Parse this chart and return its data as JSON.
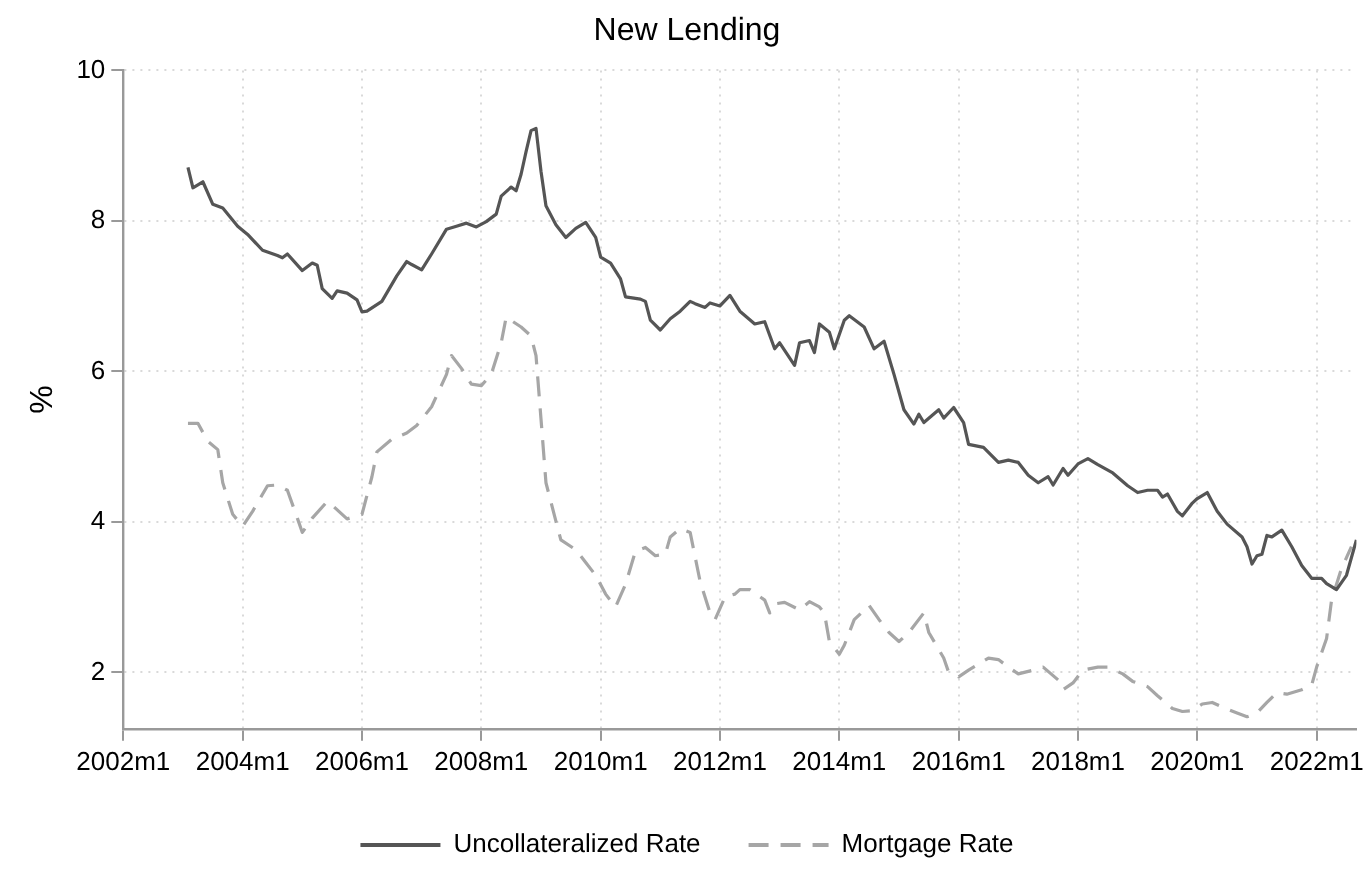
{
  "chart_data": {
    "type": "line",
    "title": "New Lending",
    "ylabel": "%",
    "xlim": [
      "2002-01",
      "2022-09"
    ],
    "ylim": [
      1.25,
      10
    ],
    "xticks": [
      {
        "value": "2002-01",
        "label": "2002m1"
      },
      {
        "value": "2004-01",
        "label": "2004m1"
      },
      {
        "value": "2006-01",
        "label": "2006m1"
      },
      {
        "value": "2008-01",
        "label": "2008m1"
      },
      {
        "value": "2010-01",
        "label": "2010m1"
      },
      {
        "value": "2012-01",
        "label": "2012m1"
      },
      {
        "value": "2014-01",
        "label": "2014m1"
      },
      {
        "value": "2016-01",
        "label": "2016m1"
      },
      {
        "value": "2018-01",
        "label": "2018m1"
      },
      {
        "value": "2020-01",
        "label": "2020m1"
      },
      {
        "value": "2022-01",
        "label": "2022m1"
      }
    ],
    "yticks": [
      2,
      4,
      6,
      8,
      10
    ],
    "grid": true,
    "legend": "bottom",
    "marker": "none",
    "series": [
      {
        "name": "Uncollateralized Rate",
        "color": "#555555",
        "line_style": "solid",
        "x": [
          "2003-02",
          "2003-03",
          "2003-05",
          "2003-07",
          "2003-09",
          "2003-12",
          "2004-02",
          "2004-05",
          "2004-08",
          "2004-09",
          "2004-10",
          "2005-01",
          "2005-03",
          "2005-04",
          "2005-05",
          "2005-07",
          "2005-08",
          "2005-10",
          "2005-12",
          "2006-01",
          "2006-02",
          "2006-05",
          "2006-08",
          "2006-10",
          "2006-11",
          "2007-01",
          "2007-03",
          "2007-06",
          "2007-08",
          "2007-10",
          "2007-12",
          "2008-02",
          "2008-04",
          "2008-05",
          "2008-07",
          "2008-08",
          "2008-09",
          "2008-10",
          "2008-11",
          "2008-12",
          "2009-01",
          "2009-02",
          "2009-04",
          "2009-06",
          "2009-08",
          "2009-10",
          "2009-12",
          "2010-01",
          "2010-03",
          "2010-05",
          "2010-06",
          "2010-09",
          "2010-10",
          "2010-11",
          "2011-01",
          "2011-03",
          "2011-05",
          "2011-07",
          "2011-08",
          "2011-10",
          "2011-11",
          "2012-01",
          "2012-03",
          "2012-05",
          "2012-08",
          "2012-10",
          "2012-12",
          "2013-01",
          "2013-04",
          "2013-05",
          "2013-07",
          "2013-08",
          "2013-09",
          "2013-11",
          "2013-12",
          "2014-02",
          "2014-03",
          "2014-06",
          "2014-08",
          "2014-10",
          "2014-12",
          "2015-02",
          "2015-04",
          "2015-05",
          "2015-06",
          "2015-09",
          "2015-10",
          "2015-12",
          "2016-02",
          "2016-03",
          "2016-06",
          "2016-09",
          "2016-11",
          "2017-01",
          "2017-03",
          "2017-05",
          "2017-07",
          "2017-08",
          "2017-10",
          "2017-11",
          "2018-01",
          "2018-03",
          "2018-05",
          "2018-08",
          "2018-11",
          "2019-01",
          "2019-03",
          "2019-05",
          "2019-06",
          "2019-07",
          "2019-09",
          "2019-10",
          "2019-12",
          "2020-01",
          "2020-03",
          "2020-05",
          "2020-07",
          "2020-10",
          "2020-11",
          "2020-12",
          "2021-01",
          "2021-02",
          "2021-03",
          "2021-04",
          "2021-06",
          "2021-08",
          "2021-10",
          "2021-12",
          "2022-02",
          "2022-03",
          "2022-05",
          "2022-07",
          "2022-09"
        ],
        "values": [
          8.71,
          8.44,
          8.52,
          8.22,
          8.17,
          7.93,
          7.82,
          7.61,
          7.54,
          7.51,
          7.56,
          7.34,
          7.44,
          7.41,
          7.1,
          6.97,
          7.07,
          7.04,
          6.95,
          6.79,
          6.8,
          6.93,
          7.27,
          7.46,
          7.42,
          7.35,
          7.56,
          7.89,
          7.93,
          7.97,
          7.92,
          7.99,
          8.09,
          8.33,
          8.45,
          8.4,
          8.62,
          8.92,
          9.2,
          9.23,
          8.66,
          8.2,
          7.95,
          7.78,
          7.9,
          7.98,
          7.78,
          7.52,
          7.44,
          7.23,
          6.99,
          6.96,
          6.93,
          6.68,
          6.55,
          6.7,
          6.8,
          6.93,
          6.9,
          6.85,
          6.91,
          6.87,
          7.01,
          6.8,
          6.63,
          6.66,
          6.3,
          6.38,
          6.08,
          6.38,
          6.41,
          6.25,
          6.63,
          6.52,
          6.3,
          6.68,
          6.74,
          6.59,
          6.3,
          6.4,
          5.96,
          5.49,
          5.3,
          5.43,
          5.32,
          5.49,
          5.38,
          5.52,
          5.32,
          5.03,
          4.99,
          4.79,
          4.82,
          4.79,
          4.62,
          4.52,
          4.6,
          4.49,
          4.71,
          4.62,
          4.77,
          4.84,
          4.76,
          4.65,
          4.48,
          4.39,
          4.42,
          4.42,
          4.33,
          4.37,
          4.14,
          4.08,
          4.25,
          4.31,
          4.39,
          4.14,
          3.97,
          3.8,
          3.67,
          3.44,
          3.55,
          3.57,
          3.82,
          3.8,
          3.89,
          3.67,
          3.42,
          3.25,
          3.25,
          3.18,
          3.1,
          3.29,
          3.76
        ]
      },
      {
        "name": "Mortgage Rate",
        "color": "#a6a6a6",
        "line_style": "dashed",
        "x": [
          "2003-02",
          "2003-04",
          "2003-06",
          "2003-08",
          "2003-09",
          "2003-11",
          "2004-01",
          "2004-03",
          "2004-06",
          "2004-08",
          "2004-10",
          "2004-12",
          "2005-01",
          "2005-03",
          "2005-06",
          "2005-07",
          "2005-10",
          "2006-01",
          "2006-03",
          "2006-04",
          "2006-07",
          "2006-10",
          "2006-12",
          "2007-03",
          "2007-06",
          "2007-07",
          "2007-09",
          "2007-11",
          "2008-01",
          "2008-03",
          "2008-05",
          "2008-06",
          "2008-09",
          "2008-11",
          "2008-12",
          "2009-01",
          "2009-02",
          "2009-04",
          "2009-05",
          "2009-08",
          "2009-10",
          "2009-12",
          "2010-02",
          "2010-04",
          "2010-06",
          "2010-08",
          "2010-10",
          "2010-12",
          "2011-02",
          "2011-03",
          "2011-05",
          "2011-07",
          "2011-09",
          "2011-11",
          "2011-12",
          "2012-02",
          "2012-04",
          "2012-05",
          "2012-07",
          "2012-10",
          "2012-11",
          "2012-12",
          "2013-02",
          "2013-05",
          "2013-07",
          "2013-09",
          "2013-10",
          "2013-11",
          "2014-01",
          "2014-02",
          "2014-04",
          "2014-07",
          "2014-09",
          "2014-11",
          "2015-01",
          "2015-03",
          "2015-06",
          "2015-07",
          "2015-10",
          "2015-11",
          "2016-01",
          "2016-03",
          "2016-05",
          "2016-07",
          "2016-09",
          "2016-11",
          "2017-01",
          "2017-04",
          "2017-06",
          "2017-09",
          "2017-10",
          "2017-12",
          "2018-02",
          "2018-05",
          "2018-07",
          "2018-10",
          "2018-12",
          "2019-03",
          "2019-05",
          "2019-08",
          "2019-10",
          "2019-12",
          "2020-02",
          "2020-04",
          "2020-06",
          "2020-09",
          "2020-11",
          "2021-01",
          "2021-03",
          "2021-05",
          "2021-07",
          "2021-10",
          "2021-12",
          "2022-01",
          "2022-03",
          "2022-04",
          "2022-06",
          "2022-08"
        ],
        "values": [
          5.31,
          5.31,
          5.07,
          4.96,
          4.52,
          4.1,
          3.94,
          4.14,
          4.48,
          4.49,
          4.42,
          4.05,
          3.86,
          4.05,
          4.27,
          4.22,
          4.04,
          4.1,
          4.6,
          4.93,
          5.1,
          5.18,
          5.28,
          5.53,
          5.96,
          6.21,
          6.04,
          5.83,
          5.81,
          5.96,
          6.38,
          6.72,
          6.59,
          6.47,
          6.21,
          5.37,
          4.52,
          4.01,
          3.76,
          3.63,
          3.46,
          3.29,
          3.04,
          2.87,
          3.17,
          3.61,
          3.66,
          3.55,
          3.57,
          3.8,
          3.91,
          3.86,
          3.21,
          2.79,
          2.7,
          3.0,
          3.04,
          3.1,
          3.1,
          2.96,
          2.79,
          2.91,
          2.93,
          2.83,
          2.94,
          2.87,
          2.79,
          2.41,
          2.24,
          2.36,
          2.7,
          2.89,
          2.7,
          2.53,
          2.41,
          2.53,
          2.79,
          2.53,
          2.19,
          2.0,
          1.94,
          2.03,
          2.11,
          2.19,
          2.17,
          2.07,
          1.98,
          2.03,
          2.07,
          1.9,
          1.77,
          1.86,
          2.03,
          2.07,
          2.07,
          1.98,
          1.88,
          1.81,
          1.69,
          1.52,
          1.48,
          1.49,
          1.58,
          1.6,
          1.54,
          1.46,
          1.41,
          1.46,
          1.6,
          1.73,
          1.71,
          1.77,
          1.83,
          2.07,
          2.45,
          2.96,
          3.38,
          3.67
        ]
      }
    ]
  }
}
